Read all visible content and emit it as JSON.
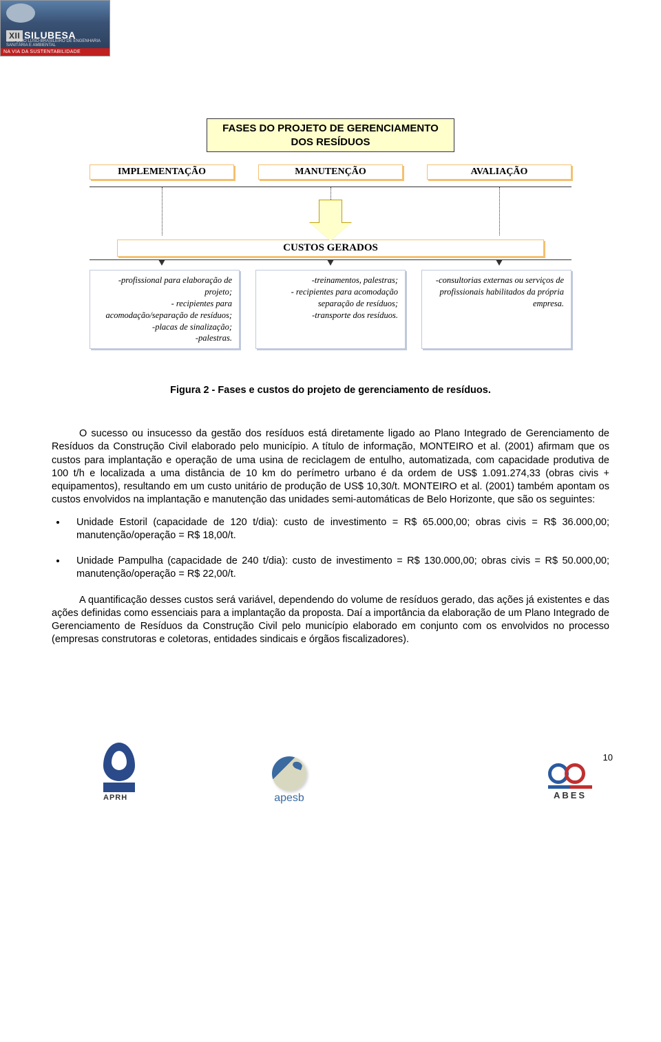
{
  "header": {
    "roman": "XII",
    "brand": "SILUBESA",
    "sub": "SIMPÓSIO LUSO-BRASILEIRO DE ENGENHARIA SANITÁRIA E AMBIENTAL",
    "redbar": "NA VIA DA SUSTENTABILIDADE"
  },
  "diagram": {
    "title_line1": "FASES DO PROJETO DE GERENCIAMENTO",
    "title_line2": "DOS RESÍDUOS",
    "phases": {
      "p1": "IMPLEMENTAÇÃO",
      "p2": "MANUTENÇÃO",
      "p3": "AVALIAÇÃO"
    },
    "custos": "CUSTOS GERADOS",
    "details": {
      "d1": "-profissional para elaboração de projeto;\n- recipientes para acomodação/separação de resíduos;\n-placas de sinalização;\n-palestras.",
      "d2": "-treinamentos, palestras;\n- recipientes para acomodação separação de resíduos;\n-transporte dos resíduos.",
      "d3": "-consultorias externas ou serviços de profissionais habilitados da própria empresa."
    },
    "colors": {
      "title_bg": "#ffffcc",
      "phase_border": "#f4c070",
      "detail_border": "#c0c8dc",
      "arrow_fill": "#ffffcc",
      "arrow_border": "#c0a000"
    }
  },
  "figure_caption": "Figura 2 - Fases e custos do projeto de gerenciamento de resíduos.",
  "paragraphs": {
    "p1": "O sucesso ou insucesso da gestão dos resíduos está diretamente ligado ao Plano Integrado de Gerenciamento de Resíduos da Construção Civil elaborado pelo município. A título de informação, MONTEIRO et al. (2001) afirmam que os custos para implantação e operação de uma usina de reciclagem de entulho, automatizada, com capacidade produtiva de 100 t/h e localizada a uma distância de 10 km do perímetro urbano é da ordem de US$ 1.091.274,33 (obras civis + equipamentos), resultando em um custo unitário de produção de US$ 10,30/t. MONTEIRO et al. (2001) também apontam os custos envolvidos na implantação e manutenção das unidades semi-automáticas de Belo Horizonte, que são os seguintes:",
    "bullet1": "Unidade Estoril (capacidade de 120 t/dia): custo de investimento = R$ 65.000,00; obras civis = R$ 36.000,00; manutenção/operação = R$ 18,00/t.",
    "bullet2": "Unidade Pampulha (capacidade de 240 t/dia): custo de investimento = R$ 130.000,00; obras civis = R$ 50.000,00; manutenção/operação = R$ 22,00/t.",
    "p2": "A quantificação desses custos será variável, dependendo do volume de resíduos gerado, das ações já existentes e das ações definidas como essenciais para a implantação da proposta. Daí a importância da elaboração de um Plano Integrado de Gerenciamento de Resíduos da Construção Civil pelo município elaborado em conjunto com os envolvidos no processo (empresas construtoras e coletoras, entidades sindicais e órgãos fiscalizadores)."
  },
  "footer": {
    "page": "10",
    "aprh": "APRH",
    "apesb": "apesb",
    "abes": "ABES"
  }
}
